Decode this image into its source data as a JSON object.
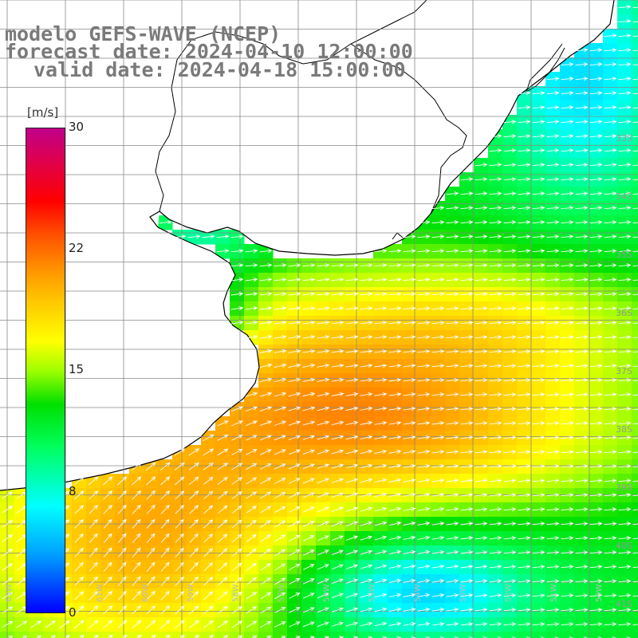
{
  "title": {
    "line1": "modelo GEFS-WAVE (NCEP)",
    "line2": "forecast date: 2024-04-10 12:00:00",
    "line3": "valid date: 2024-04-18 15:00:00"
  },
  "colorbar": {
    "unit": "[m/s]",
    "ticks": [
      "30",
      "22",
      "15",
      "8",
      "0"
    ],
    "range": [
      0,
      30
    ]
  },
  "map": {
    "lat_labels": [
      "33S",
      "34S",
      "35S",
      "36S",
      "37S",
      "38S",
      "39S",
      "40S",
      "41S"
    ],
    "lon_labels": [
      "63W",
      "62W",
      "61W",
      "60W",
      "59W",
      "58W",
      "57W",
      "56W",
      "55W",
      "54W",
      "53W",
      "52W",
      "51W",
      "50W"
    ],
    "arrow_color": "#ffffff",
    "land_color": "#ffffff",
    "coast_color": "#000000"
  }
}
